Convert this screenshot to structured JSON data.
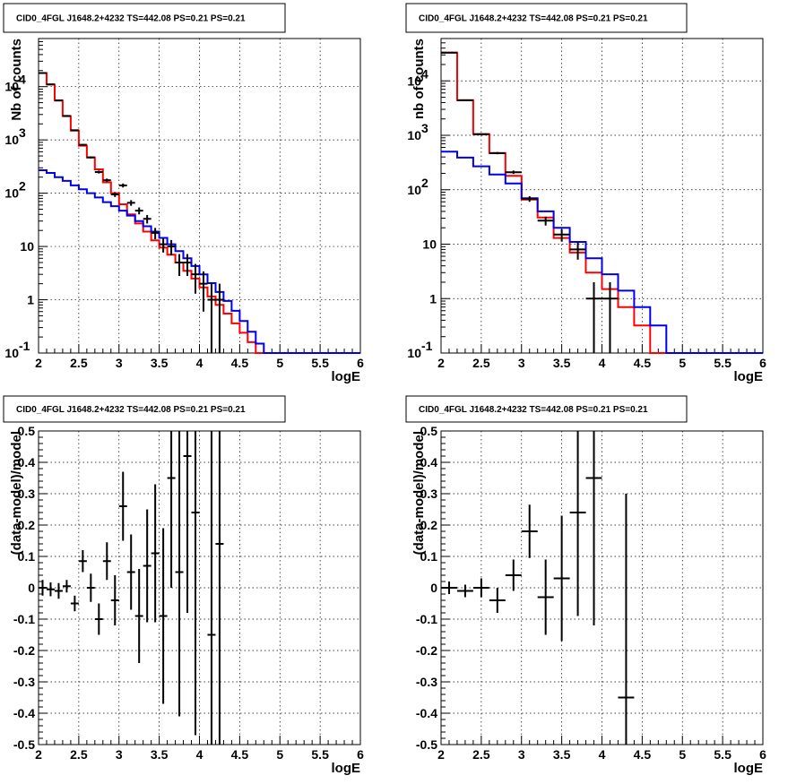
{
  "chart_data": [
    {
      "type": "line",
      "title": "CID0_4FGL J1648.2+4232 TS=442.08 PS=0.21 PS=0.21",
      "xlabel": "logE",
      "ylabel": "Nb of counts",
      "xlim": [
        2,
        6
      ],
      "ylim": [
        0.1,
        80000
      ],
      "yscale": "log",
      "grid": true,
      "x_ticks": [
        "2",
        "2.5",
        "3",
        "3.5",
        "4",
        "4.5",
        "5",
        "5.5",
        "6"
      ],
      "y_ticks": [
        "10^-1",
        "1",
        "10",
        "10^2",
        "10^3",
        "10^4"
      ],
      "bin_edges": [
        2.0,
        2.1,
        2.2,
        2.3,
        2.4,
        2.5,
        2.6,
        2.7,
        2.8,
        2.9,
        3.0,
        3.1,
        3.2,
        3.3,
        3.4,
        3.5,
        3.6,
        3.7,
        3.8,
        3.9,
        4.0,
        4.1,
        4.2,
        4.3,
        4.4,
        4.5,
        4.6,
        4.7,
        4.8,
        4.9,
        5.0,
        5.1,
        5.2,
        5.3,
        5.4,
        5.5,
        5.6,
        5.7,
        5.8,
        5.9,
        6.0
      ],
      "series": [
        {
          "color": "#ff0000",
          "values": [
            18000,
            11000,
            5500,
            2800,
            1500,
            780,
            470,
            280,
            160,
            100,
            62,
            40,
            27,
            19,
            13,
            9.5,
            7,
            5,
            3.5,
            2.5,
            1.7,
            1.15,
            0.8,
            0.55,
            0.36,
            0.24,
            0.16,
            0.1,
            0.1,
            0.1,
            0.1,
            0.1,
            0.1,
            0.1,
            0.1,
            0.1,
            0.1,
            0.1,
            0.1,
            0.1
          ]
        },
        {
          "color": "#0000ee",
          "values": [
            270,
            240,
            200,
            170,
            140,
            118,
            100,
            83,
            68,
            57,
            47,
            38,
            30,
            24,
            19,
            14.5,
            11,
            8.2,
            6,
            4.3,
            3,
            2.05,
            1.4,
            0.95,
            0.62,
            0.4,
            0.25,
            0.15,
            0.1,
            0.1,
            0.1,
            0.1,
            0.1,
            0.1,
            0.1,
            0.1,
            0.1,
            0.1,
            0.1,
            0.1
          ]
        }
      ],
      "data_points": [
        {
          "x": 2.05,
          "y": 18000,
          "err": 130
        },
        {
          "x": 2.15,
          "y": 11000,
          "err": 105
        },
        {
          "x": 2.25,
          "y": 5500,
          "err": 75
        },
        {
          "x": 2.35,
          "y": 2820,
          "err": 53
        },
        {
          "x": 2.45,
          "y": 1520,
          "err": 39
        },
        {
          "x": 2.55,
          "y": 810,
          "err": 28
        },
        {
          "x": 2.65,
          "y": 470,
          "err": 22
        },
        {
          "x": 2.75,
          "y": 250,
          "err": 16
        },
        {
          "x": 2.85,
          "y": 175,
          "err": 13
        },
        {
          "x": 2.95,
          "y": 95,
          "err": 10
        },
        {
          "x": 3.05,
          "y": 140,
          "err": 12
        },
        {
          "x": 3.15,
          "y": 66,
          "err": 8
        },
        {
          "x": 3.25,
          "y": 47,
          "err": 7
        },
        {
          "x": 3.35,
          "y": 33,
          "err": 6
        },
        {
          "x": 3.45,
          "y": 18,
          "err": 4.3
        },
        {
          "x": 3.55,
          "y": 11,
          "err": 3.3
        },
        {
          "x": 3.65,
          "y": 10,
          "err": 3.2
        },
        {
          "x": 3.75,
          "y": 5,
          "err": 2.2
        },
        {
          "x": 3.85,
          "y": 5,
          "err": 2.2
        },
        {
          "x": 3.95,
          "y": 3,
          "err": 1.7
        },
        {
          "x": 4.05,
          "y": 2,
          "err": 1.4
        },
        {
          "x": 4.15,
          "y": 1,
          "err": 1
        },
        {
          "x": 4.25,
          "y": 1,
          "err": 1
        }
      ]
    },
    {
      "type": "line",
      "title": "CID0_4FGL J1648.2+4232 TS=442.08 PS=0.21 PS=0.21",
      "xlabel": "logE",
      "ylabel": "nb of counts",
      "xlim": [
        2,
        6
      ],
      "ylim": [
        0.1,
        60000
      ],
      "yscale": "log",
      "grid": true,
      "x_ticks": [
        "2",
        "2.5",
        "3",
        "3.5",
        "4",
        "4.5",
        "5",
        "5.5",
        "6"
      ],
      "y_ticks": [
        "10^-1",
        "1",
        "10",
        "10^2",
        "10^3",
        "10^4"
      ],
      "bin_edges": [
        2.0,
        2.2,
        2.4,
        2.6,
        2.8,
        3.0,
        3.2,
        3.4,
        3.6,
        3.8,
        4.0,
        4.2,
        4.4,
        4.6,
        4.8,
        5.0,
        5.2,
        5.4,
        5.6,
        5.8,
        6.0
      ],
      "series": [
        {
          "color": "#ff0000",
          "values": [
            33000,
            4400,
            1050,
            470,
            180,
            66,
            31,
            13,
            7,
            3,
            1.5,
            0.7,
            0.32,
            0.1,
            0.1,
            0.1,
            0.1,
            0.1,
            0.1,
            0.1
          ]
        },
        {
          "color": "#0000ee",
          "values": [
            500,
            390,
            270,
            190,
            130,
            70,
            40,
            20,
            11,
            5.5,
            2.8,
            1.4,
            0.7,
            0.32,
            0.1,
            0.1,
            0.1,
            0.1,
            0.1,
            0.1
          ]
        }
      ],
      "data_points": [
        {
          "x": 2.1,
          "y": 33000,
          "err": 180
        },
        {
          "x": 2.3,
          "y": 4400,
          "err": 66
        },
        {
          "x": 2.5,
          "y": 1050,
          "err": 32
        },
        {
          "x": 2.7,
          "y": 470,
          "err": 22
        },
        {
          "x": 2.9,
          "y": 210,
          "err": 15
        },
        {
          "x": 3.1,
          "y": 68,
          "err": 8
        },
        {
          "x": 3.3,
          "y": 27,
          "err": 5
        },
        {
          "x": 3.5,
          "y": 15,
          "err": 3.9
        },
        {
          "x": 3.7,
          "y": 8,
          "err": 2.8
        },
        {
          "x": 3.9,
          "y": 1,
          "err": 1
        },
        {
          "x": 4.1,
          "y": 1,
          "err": 1
        }
      ]
    },
    {
      "type": "scatter",
      "title": "CID0_4FGL J1648.2+4232 TS=442.08 PS=0.21 PS=0.21",
      "xlabel": "logE",
      "ylabel": "(data-model)/model",
      "xlim": [
        2,
        6
      ],
      "ylim": [
        -0.5,
        0.5
      ],
      "grid": true,
      "x_ticks": [
        "2",
        "2.5",
        "3",
        "3.5",
        "4",
        "4.5",
        "5",
        "5.5",
        "6"
      ],
      "y_ticks": [
        "-0.5",
        "-0.4",
        "-0.3",
        "-0.2",
        "-0.1",
        "0",
        "0.1",
        "0.2",
        "0.3",
        "0.4",
        "0.5"
      ],
      "bin_width": 0.1,
      "points": [
        {
          "x": 2.05,
          "y": 0.0,
          "err": 0.025
        },
        {
          "x": 2.15,
          "y": -0.005,
          "err": 0.022
        },
        {
          "x": 2.25,
          "y": -0.01,
          "err": 0.025
        },
        {
          "x": 2.35,
          "y": 0.005,
          "err": 0.02
        },
        {
          "x": 2.45,
          "y": -0.05,
          "err": 0.025
        },
        {
          "x": 2.55,
          "y": 0.085,
          "err": 0.035
        },
        {
          "x": 2.65,
          "y": 0.0,
          "err": 0.045
        },
        {
          "x": 2.75,
          "y": -0.1,
          "err": 0.05
        },
        {
          "x": 2.85,
          "y": 0.085,
          "err": 0.06
        },
        {
          "x": 2.95,
          "y": -0.04,
          "err": 0.08
        },
        {
          "x": 3.05,
          "y": 0.26,
          "err": 0.11
        },
        {
          "x": 3.15,
          "y": 0.05,
          "err": 0.12
        },
        {
          "x": 3.25,
          "y": -0.09,
          "err": 0.15
        },
        {
          "x": 3.35,
          "y": 0.07,
          "err": 0.18
        },
        {
          "x": 3.45,
          "y": 0.11,
          "err": 0.22
        },
        {
          "x": 3.55,
          "y": -0.09,
          "err": 0.28
        },
        {
          "x": 3.65,
          "y": 0.35,
          "err": 0.35
        },
        {
          "x": 3.75,
          "y": 0.05,
          "err": 0.46
        },
        {
          "x": 3.85,
          "y": 0.42,
          "err": 0.5
        },
        {
          "x": 3.95,
          "y": 0.24,
          "err": 0.71
        },
        {
          "x": 4.15,
          "y": -0.15,
          "err": 0.87
        },
        {
          "x": 4.25,
          "y": 0.14,
          "err": 1.2
        }
      ]
    },
    {
      "type": "scatter",
      "title": "CID0_4FGL J1648.2+4232 TS=442.08 PS=0.21 PS=0.21",
      "xlabel": "logE",
      "ylabel": "(data-model)/model",
      "xlim": [
        2,
        6
      ],
      "ylim": [
        -0.5,
        0.5
      ],
      "grid": true,
      "x_ticks": [
        "2",
        "2.5",
        "3",
        "3.5",
        "4",
        "4.5",
        "5",
        "5.5",
        "6"
      ],
      "y_ticks": [
        "-0.5",
        "-0.4",
        "-0.3",
        "-0.2",
        "-0.1",
        "0",
        "0.1",
        "0.2",
        "0.3",
        "0.4",
        "0.5"
      ],
      "bin_width": 0.2,
      "points": [
        {
          "x": 2.1,
          "y": 0.0,
          "err": 0.02
        },
        {
          "x": 2.3,
          "y": -0.01,
          "err": 0.02
        },
        {
          "x": 2.5,
          "y": 0.0,
          "err": 0.03
        },
        {
          "x": 2.7,
          "y": -0.04,
          "err": 0.04
        },
        {
          "x": 2.9,
          "y": 0.04,
          "err": 0.05
        },
        {
          "x": 3.1,
          "y": 0.18,
          "err": 0.085
        },
        {
          "x": 3.3,
          "y": -0.03,
          "err": 0.12
        },
        {
          "x": 3.5,
          "y": 0.03,
          "err": 0.2
        },
        {
          "x": 3.7,
          "y": 0.24,
          "err": 0.33
        },
        {
          "x": 3.9,
          "y": 0.35,
          "err": 0.47
        },
        {
          "x": 4.3,
          "y": -0.35,
          "err": 0.65
        }
      ]
    }
  ]
}
